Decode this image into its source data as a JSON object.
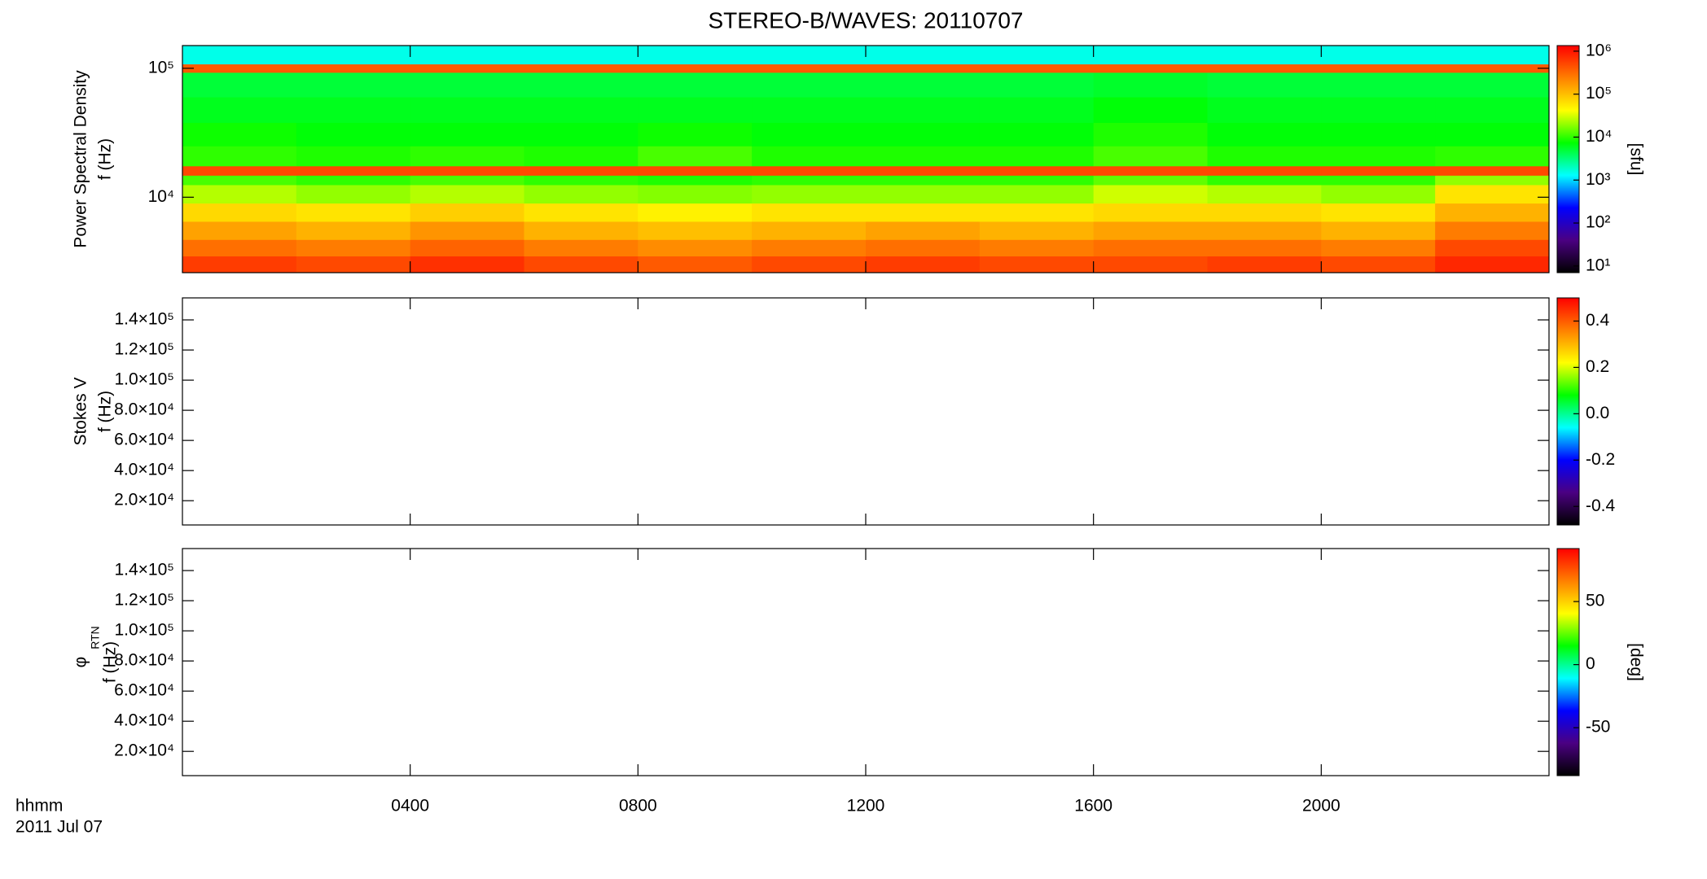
{
  "chart_data": [
    {
      "type": "heatmap",
      "title": "STEREO-B/WAVES: 20110707",
      "ylabel": "Power Spectral Density",
      "ylabel2": "f (Hz)",
      "ylog": true,
      "ylim": [
        2600,
        150000
      ],
      "yticks": [
        {
          "value": 10000,
          "label": "10⁴"
        },
        {
          "value": 100000,
          "label": "10⁵"
        }
      ],
      "xlim": [
        0,
        24
      ],
      "x": [
        0,
        2,
        4,
        6,
        8,
        10,
        12,
        14,
        16,
        18,
        20,
        22
      ],
      "y": [
        2600,
        3500,
        4700,
        6500,
        9000,
        12500,
        14800,
        17500,
        25000,
        38000,
        60000,
        93000,
        108000
      ],
      "values": [
        [
          600000,
          500000,
          700000,
          500000,
          400000,
          500000,
          600000,
          500000,
          500000,
          600000,
          500000,
          800000
        ],
        [
          300000,
          250000,
          350000,
          250000,
          200000,
          250000,
          300000,
          250000,
          300000,
          300000,
          250000,
          500000
        ],
        [
          150000,
          120000,
          180000,
          120000,
          100000,
          120000,
          150000,
          120000,
          150000,
          150000,
          120000,
          250000
        ],
        [
          70000,
          60000,
          80000,
          60000,
          50000,
          60000,
          60000,
          60000,
          70000,
          70000,
          60000,
          120000
        ],
        [
          25000,
          20000,
          25000,
          20000,
          18000,
          20000,
          20000,
          20000,
          30000,
          25000,
          20000,
          60000
        ],
        [
          12000,
          10000,
          12000,
          10000,
          9000,
          10000,
          10000,
          10000,
          14000,
          10000,
          10000,
          20000
        ],
        [
          500000,
          500000,
          500000,
          500000,
          500000,
          500000,
          500000,
          500000,
          500000,
          500000,
          500000,
          500000
        ],
        [
          10000,
          9000,
          10000,
          9000,
          12000,
          9000,
          9000,
          9000,
          12000,
          9000,
          9000,
          10000
        ],
        [
          8000,
          7000,
          7000,
          7000,
          8000,
          7000,
          7000,
          7000,
          9000,
          7000,
          7000,
          7000
        ],
        [
          6000,
          6000,
          6000,
          6000,
          6000,
          6000,
          6000,
          6000,
          7000,
          6000,
          6000,
          6000
        ],
        [
          5000,
          5000,
          5000,
          5000,
          5000,
          5000,
          5000,
          5000,
          5500,
          5000,
          5000,
          5000
        ],
        [
          400000,
          400000,
          400000,
          400000,
          400000,
          400000,
          400000,
          400000,
          400000,
          400000,
          400000,
          400000
        ],
        [
          1500,
          1500,
          1500,
          1500,
          1500,
          1500,
          1500,
          1500,
          1500,
          1500,
          1500,
          1500
        ]
      ],
      "zlog": true,
      "zlim": [
        7,
        1350000
      ],
      "zticks": [
        {
          "value": 10,
          "label": "10¹"
        },
        {
          "value": 100,
          "label": "10²"
        },
        {
          "value": 1000,
          "label": "10³"
        },
        {
          "value": 10000,
          "label": "10⁴"
        },
        {
          "value": 100000,
          "label": "10⁵"
        },
        {
          "value": 1000000,
          "label": "10⁶"
        }
      ],
      "zlabel": "[sfu]",
      "colormap": [
        "#000000",
        "#4b0082",
        "#0000ff",
        "#00ffff",
        "#00ff00",
        "#ffff00",
        "#ff8000",
        "#ff0000"
      ]
    },
    {
      "type": "heatmap",
      "ylabel": "Stokes V",
      "ylabel2": "f (Hz)",
      "ylim": [
        3900,
        154600
      ],
      "yticks": [
        {
          "value": 20000,
          "label": "2.0×10⁴"
        },
        {
          "value": 40000,
          "label": "4.0×10⁴"
        },
        {
          "value": 60000,
          "label": "6.0×10⁴"
        },
        {
          "value": 80000,
          "label": "8.0×10⁴"
        },
        {
          "value": 100000,
          "label": "1.0×10⁵"
        },
        {
          "value": 120000,
          "label": "1.2×10⁵"
        },
        {
          "value": 140000,
          "label": "1.4×10⁵"
        }
      ],
      "zlim": [
        -0.48,
        0.5
      ],
      "zticks": [
        -0.4,
        -0.2,
        {
          "value": 0,
          "label": "0.0"
        },
        0.2,
        0.4
      ],
      "colormap": [
        "#000000",
        "#4b0082",
        "#0000ff",
        "#00ffff",
        "#00ff00",
        "#ffff00",
        "#ff8000",
        "#ff0000"
      ]
    },
    {
      "type": "heatmap",
      "ylabel": "φ",
      "ylabel_sub": "RTN",
      "ylabel2": "f (Hz)",
      "ylim": [
        3900,
        154600
      ],
      "yticks": [
        {
          "value": 20000,
          "label": "2.0×10⁴"
        },
        {
          "value": 40000,
          "label": "4.0×10⁴"
        },
        {
          "value": 60000,
          "label": "6.0×10⁴"
        },
        {
          "value": 80000,
          "label": "8.0×10⁴"
        },
        {
          "value": 100000,
          "label": "1.0×10⁵"
        },
        {
          "value": 120000,
          "label": "1.2×10⁵"
        },
        {
          "value": 140000,
          "label": "1.4×10⁵"
        }
      ],
      "xlim": [
        0,
        24
      ],
      "xticks": [
        {
          "value": 4,
          "label": "0400"
        },
        {
          "value": 8,
          "label": "0800"
        },
        {
          "value": 12,
          "label": "1200"
        },
        {
          "value": 16,
          "label": "1600"
        },
        {
          "value": 20,
          "label": "2000"
        }
      ],
      "xlabel": "hhmm",
      "date_label": "2011 Jul 07",
      "zlim": [
        -88,
        92
      ],
      "zticks": [
        -50,
        0,
        50
      ],
      "zlabel": "[deg]",
      "colormap": [
        "#000000",
        "#4b0082",
        "#0000ff",
        "#00ffff",
        "#00ff00",
        "#ffff00",
        "#ff8000",
        "#ff0000"
      ]
    }
  ]
}
